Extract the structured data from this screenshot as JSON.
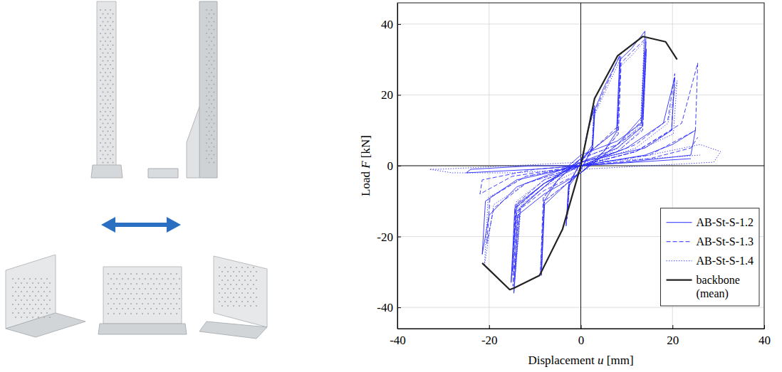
{
  "chart_data": {
    "type": "line",
    "x_label": "Displacement u [mm]",
    "y_label": "Load F [kN]",
    "xlim": [
      -40,
      40
    ],
    "ylim": [
      -46,
      46
    ],
    "xticks": [
      -40,
      -20,
      0,
      20,
      40
    ],
    "yticks": [
      -40,
      -20,
      0,
      20,
      40
    ],
    "grid": true,
    "legend": "lower right",
    "series": [
      {
        "name": "AB-St-S-1.2",
        "color": "#2a2aff",
        "line_style": "solid",
        "x": [
          0,
          1.5,
          3,
          2.6,
          0,
          -2.6,
          -3.2,
          -2.7,
          0,
          2.6,
          3.1,
          5,
          8.5,
          7.8,
          3,
          0,
          -5,
          -8,
          -8.6,
          -7.9,
          -3,
          0,
          5,
          8,
          8.6,
          11,
          14,
          13.2,
          8,
          0,
          -8,
          -13.2,
          -14.6,
          -13.8,
          -8,
          0,
          8,
          13.5,
          14.2,
          13.4,
          8,
          0,
          -8,
          -14,
          -15.2,
          -14.4,
          -8,
          0,
          10,
          18,
          20.5,
          19.8,
          14,
          0,
          -14,
          -20,
          -21.5,
          -20.8,
          -14,
          0,
          14,
          20,
          25,
          24,
          10,
          -10,
          -25,
          -24,
          -10,
          0,
          12,
          24
        ],
        "values": [
          0,
          10,
          17,
          6,
          1,
          -5,
          -17,
          -6,
          -1,
          5,
          16,
          22,
          31,
          10,
          5,
          2,
          -4,
          -10,
          -31,
          -11,
          -5,
          -2,
          4,
          10,
          30,
          33,
          38,
          12,
          7,
          3,
          -6,
          -12,
          -36,
          -14,
          -8,
          -2,
          6,
          14,
          35,
          11,
          5,
          1,
          -5,
          -11,
          -33,
          -12,
          -5,
          0,
          5,
          12,
          25,
          10,
          5,
          1,
          -6,
          -14,
          -25,
          -10,
          -4,
          0,
          3,
          6,
          10,
          3,
          1,
          -1,
          -2,
          -1,
          0,
          0,
          1,
          2
        ]
      },
      {
        "name": "AB-St-S-1.3",
        "color": "#2a2aff",
        "line_style": "dashed",
        "x": [
          0,
          1.4,
          2.9,
          2.5,
          0,
          -2.5,
          -3,
          -2.6,
          0,
          2.5,
          3,
          5,
          8.8,
          8,
          3,
          0,
          -5,
          -8.2,
          -8.8,
          -8,
          -3,
          0,
          5,
          8.2,
          8.8,
          11,
          14.2,
          13.4,
          8,
          0,
          -8,
          -13.4,
          -14.8,
          -14,
          -8,
          0,
          8,
          13.6,
          14.3,
          13.5,
          8,
          0,
          -8,
          -14.2,
          -15,
          -14.3,
          -8,
          0,
          12,
          19,
          20.5,
          19.8,
          12,
          0,
          -12,
          -19,
          -20.5,
          -19.8,
          -12,
          0,
          12,
          22,
          25.5,
          25,
          15,
          0,
          -15,
          -22,
          -21.5,
          -10,
          0,
          15,
          24,
          25.5
        ],
        "values": [
          0,
          9,
          16,
          5,
          1,
          -5,
          -15,
          -5,
          -1,
          5,
          15,
          21,
          32,
          11,
          5,
          2,
          -4,
          -9,
          -30,
          -10,
          -5,
          -2,
          4,
          9,
          29,
          32,
          36,
          11,
          6,
          2,
          -6,
          -12,
          -34,
          -13,
          -7,
          -2,
          6,
          13,
          33,
          10,
          4,
          1,
          -5,
          -12,
          -31,
          -11,
          -4,
          0,
          6,
          13,
          26,
          10,
          4,
          0,
          -5,
          -12,
          -22,
          -9,
          -3,
          0,
          4,
          12,
          29,
          10,
          3,
          0,
          -3,
          -8,
          -4,
          -1,
          0,
          2,
          5,
          8
        ]
      },
      {
        "name": "AB-St-S-1.4",
        "color": "#2a2aff",
        "line_style": "dotted",
        "x": [
          0,
          1.3,
          2.8,
          2.4,
          0,
          -2.4,
          -2.9,
          -2.5,
          0,
          2.4,
          2.9,
          5,
          8.6,
          7.9,
          3,
          0,
          -5,
          -8,
          -8.7,
          -7.9,
          -3,
          0,
          5,
          8,
          8.6,
          11,
          13.8,
          13,
          8,
          0,
          -8,
          -13,
          -14.4,
          -13.6,
          -8,
          0,
          8,
          13.2,
          13.9,
          13.1,
          8,
          0,
          -8,
          -13.8,
          -14.8,
          -14,
          -8,
          0,
          12,
          19,
          21,
          20.2,
          12,
          0,
          -12,
          -19,
          -21,
          -20.2,
          -12,
          0,
          15,
          26,
          30.5,
          29,
          15,
          0,
          -15,
          -28,
          -33,
          -31,
          -15,
          0,
          15,
          26
        ],
        "values": [
          0,
          9,
          15,
          5,
          1,
          -5,
          -14,
          -5,
          -1,
          4,
          14,
          20,
          30,
          10,
          5,
          2,
          -4,
          -9,
          -29,
          -10,
          -5,
          -2,
          4,
          9,
          28,
          31,
          35,
          11,
          6,
          2,
          -6,
          -11,
          -32,
          -12,
          -6,
          -1,
          5,
          12,
          32,
          10,
          4,
          1,
          -5,
          -11,
          -30,
          -10,
          -4,
          0,
          5,
          12,
          24,
          9,
          4,
          0,
          -5,
          -11,
          -28,
          -9,
          -3,
          0,
          3,
          6,
          4,
          1,
          0,
          -1,
          -2,
          -2,
          -1,
          -1,
          0,
          1,
          2,
          3
        ]
      },
      {
        "name": "backbone (mean)",
        "color": "#222222",
        "line_style": "solid",
        "x": [
          -21.5,
          -15.5,
          -14.5,
          -9,
          -4,
          0,
          3,
          8,
          13.5,
          18.5,
          21
        ],
        "values": [
          -27.5,
          -35,
          -34.5,
          -31,
          -18,
          0,
          19,
          31,
          36.5,
          35,
          30
        ]
      }
    ]
  }
}
